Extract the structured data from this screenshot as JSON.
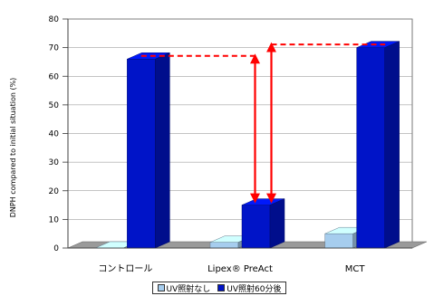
{
  "chart_data": {
    "type": "bar",
    "categories": [
      "コントロール",
      "Lipex® PreAct",
      "MCT"
    ],
    "series": [
      {
        "name": "UV照射なし",
        "values": [
          0,
          2,
          5
        ],
        "color": "#a6cdee"
      },
      {
        "name": "UV照射60分後",
        "values": [
          66,
          15,
          70
        ],
        "color": "#0014c8"
      }
    ],
    "ylabel": "DNPH compared to initial situation (%)",
    "ylim": [
      0,
      80
    ],
    "yticks": [
      0,
      10,
      20,
      30,
      40,
      50,
      60,
      70,
      80
    ],
    "grid": true,
    "legend_position": "bottom",
    "annotations": {
      "arrow_color": "#ff0000",
      "style": "dashed reference lines with double-headed arrows",
      "arrows": [
        {
          "from_category": "コントロール",
          "to_category": "Lipex® PreAct",
          "from_value": 66,
          "to_value": 15
        },
        {
          "from_category": "MCT",
          "to_category": "Lipex® PreAct",
          "from_value": 70,
          "to_value": 15
        }
      ]
    }
  }
}
